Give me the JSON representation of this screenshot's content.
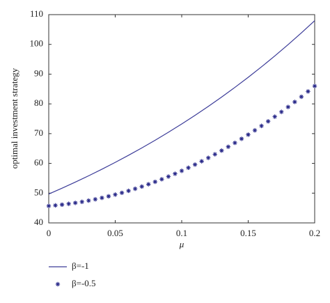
{
  "chart_data": {
    "type": "line",
    "xlabel": "μ",
    "ylabel": "optimal investment strategy",
    "xlim": [
      0,
      0.2
    ],
    "xticks": [
      0,
      0.05,
      0.1,
      0.15,
      0.2
    ],
    "ylim": [
      40,
      110
    ],
    "yticks": [
      40,
      50,
      60,
      70,
      80,
      90,
      100,
      110
    ],
    "series": [
      {
        "name": "β=-1",
        "color": "#3b3b98",
        "marker": "none",
        "x": [
          0,
          0.01,
          0.02,
          0.03,
          0.04,
          0.05,
          0.06,
          0.07,
          0.08,
          0.09,
          0.1,
          0.11,
          0.12,
          0.13,
          0.14,
          0.15,
          0.16,
          0.17,
          0.18,
          0.19,
          0.2
        ],
        "values": [
          49.7,
          51.67,
          53.71,
          55.83,
          58.04,
          60.34,
          62.72,
          65.2,
          67.78,
          70.46,
          73.25,
          76.15,
          79.16,
          82.29,
          85.55,
          88.93,
          92.45,
          96.11,
          99.91,
          103.87,
          107.97
        ]
      },
      {
        "name": "β=-0.5",
        "color": "#2a2a8a",
        "marker": "star",
        "x": [
          0,
          0.005,
          0.01,
          0.015,
          0.02,
          0.025,
          0.03,
          0.035,
          0.04,
          0.045,
          0.05,
          0.055,
          0.06,
          0.065,
          0.07,
          0.075,
          0.08,
          0.085,
          0.09,
          0.095,
          0.1,
          0.105,
          0.11,
          0.115,
          0.12,
          0.125,
          0.13,
          0.135,
          0.14,
          0.145,
          0.15,
          0.155,
          0.16,
          0.165,
          0.17,
          0.175,
          0.18,
          0.185,
          0.19,
          0.195,
          0.2
        ],
        "values": [
          45.7,
          45.89,
          46.13,
          46.41,
          46.72,
          47.08,
          47.49,
          47.93,
          48.42,
          48.94,
          49.51,
          50.12,
          50.78,
          51.47,
          52.21,
          52.98,
          53.8,
          54.67,
          55.57,
          56.51,
          57.5,
          58.53,
          59.6,
          60.71,
          61.86,
          63.06,
          64.3,
          65.58,
          66.9,
          68.26,
          69.66,
          71.11,
          72.6,
          74.13,
          75.7,
          77.31,
          78.96,
          80.66,
          82.4,
          84.18,
          86.0
        ]
      }
    ]
  }
}
